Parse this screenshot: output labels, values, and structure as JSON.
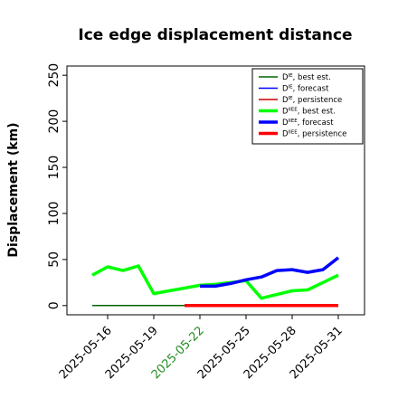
{
  "chart_data": {
    "type": "line",
    "title": "Ice edge displacement distance",
    "ylabel": "Displacement (km)",
    "xlabel": "",
    "ylim": [
      -10,
      260
    ],
    "yticks": [
      0,
      50,
      100,
      150,
      200,
      250
    ],
    "xticks": [
      "2025-05-16",
      "2025-05-19",
      "2025-05-22",
      "2025-05-25",
      "2025-05-28",
      "2025-05-31"
    ],
    "highlight_tick": "2025-05-22",
    "highlight_color": "#228b22",
    "grid": false,
    "legend_position": "top-right",
    "series": [
      {
        "name_base": "D",
        "name_sup": "IE",
        "name_suffix": ", best est.",
        "color": "#006400",
        "width": "thin",
        "x": [
          "2025-05-15",
          "2025-05-16",
          "2025-05-17",
          "2025-05-18",
          "2025-05-19",
          "2025-05-20",
          "2025-05-21",
          "2025-05-22"
        ],
        "y": [
          0,
          0,
          0,
          0,
          0,
          0,
          0,
          0
        ]
      },
      {
        "name_base": "D",
        "name_sup": "IE",
        "name_suffix": ", forecast",
        "color": "#0000ff",
        "width": "thin",
        "x": [],
        "y": []
      },
      {
        "name_base": "D",
        "name_sup": "IE",
        "name_suffix": ", persistence",
        "color": "#cc0000",
        "width": "thin",
        "x": [],
        "y": []
      },
      {
        "name_base": "D",
        "name_sup": "IIEE",
        "name_suffix": ", best est.",
        "color": "#00ff00",
        "width": "thick",
        "x": [
          "2025-05-15",
          "2025-05-16",
          "2025-05-17",
          "2025-05-18",
          "2025-05-19",
          "2025-05-20",
          "2025-05-21",
          "2025-05-22",
          "2025-05-23",
          "2025-05-24",
          "2025-05-25",
          "2025-05-26",
          "2025-05-27",
          "2025-05-28",
          "2025-05-29",
          "2025-05-30",
          "2025-05-31"
        ],
        "y": [
          33,
          42,
          38,
          43,
          13,
          16,
          19,
          22,
          23,
          25,
          27,
          8,
          12,
          16,
          17,
          25,
          33
        ]
      },
      {
        "name_base": "D",
        "name_sup": "IIEE",
        "name_suffix": ", forecast",
        "color": "#0000ff",
        "width": "thick",
        "x": [
          "2025-05-22",
          "2025-05-23",
          "2025-05-24",
          "2025-05-25",
          "2025-05-26",
          "2025-05-27",
          "2025-05-28",
          "2025-05-29",
          "2025-05-30",
          "2025-05-31"
        ],
        "y": [
          21,
          21,
          24,
          28,
          31,
          38,
          39,
          36,
          39,
          52
        ]
      },
      {
        "name_base": "D",
        "name_sup": "IIEE",
        "name_suffix": ", persistence",
        "color": "#ff0000",
        "width": "thick",
        "x": [
          "2025-05-21",
          "2025-05-22",
          "2025-05-23",
          "2025-05-24",
          "2025-05-25",
          "2025-05-26",
          "2025-05-27",
          "2025-05-28",
          "2025-05-29",
          "2025-05-30",
          "2025-05-31"
        ],
        "y": [
          0,
          0,
          0,
          0,
          0,
          0,
          0,
          0,
          0,
          0,
          0
        ]
      }
    ]
  }
}
